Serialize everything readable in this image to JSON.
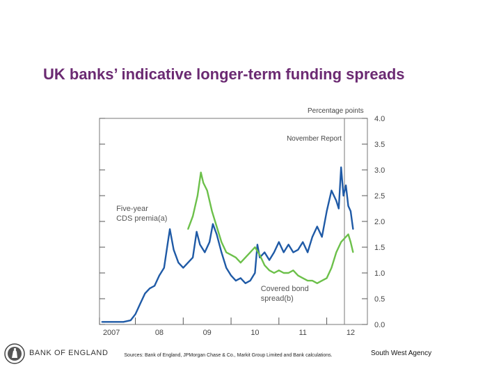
{
  "slide": {
    "title": "UK banks’ indicative longer-term funding spreads",
    "sources": "Sources: Bank of England, JPMorgan Chase & Co., Markit Group Limited and Bank calculations.",
    "agency": "South West Agency",
    "logo_text": "BANK OF ENGLAND"
  },
  "chart_data": {
    "type": "line",
    "title": "",
    "ylabel": "Percentage points",
    "ylim": [
      0,
      4
    ],
    "y_ticks": [
      "4.0",
      "3.5",
      "3.0",
      "2.5",
      "2.0",
      "1.5",
      "1.0",
      "0.5",
      "0.0"
    ],
    "x_range": [
      2006.75,
      2012.35
    ],
    "x_ticks": [
      {
        "label": "2007",
        "x": 2007.0
      },
      {
        "label": "08",
        "x": 2008.0
      },
      {
        "label": "09",
        "x": 2009.0
      },
      {
        "label": "10",
        "x": 2010.0
      },
      {
        "label": "11",
        "x": 2011.0
      },
      {
        "label": "12",
        "x": 2012.0
      }
    ],
    "x_grid_divisions": [
      2006.75,
      2007.5,
      2008.5,
      2009.5,
      2010.5,
      2011.5
    ],
    "grid": false,
    "colors": {
      "cds": "#1f5aa6",
      "covered": "#6cc04a"
    },
    "annotations": [
      {
        "name": "november-report-line",
        "x": 2011.87,
        "label": "November Report"
      }
    ],
    "series": [
      {
        "name": "Five-year CDS premia(a)",
        "color": "#1f5aa6",
        "points": [
          [
            2006.8,
            0.05
          ],
          [
            2007.0,
            0.05
          ],
          [
            2007.1,
            0.05
          ],
          [
            2007.25,
            0.05
          ],
          [
            2007.4,
            0.08
          ],
          [
            2007.5,
            0.2
          ],
          [
            2007.6,
            0.4
          ],
          [
            2007.7,
            0.6
          ],
          [
            2007.8,
            0.7
          ],
          [
            2007.9,
            0.75
          ],
          [
            2008.0,
            0.95
          ],
          [
            2008.1,
            1.1
          ],
          [
            2008.18,
            1.6
          ],
          [
            2008.22,
            1.85
          ],
          [
            2008.3,
            1.45
          ],
          [
            2008.4,
            1.2
          ],
          [
            2008.5,
            1.1
          ],
          [
            2008.6,
            1.2
          ],
          [
            2008.7,
            1.3
          ],
          [
            2008.78,
            1.8
          ],
          [
            2008.85,
            1.55
          ],
          [
            2008.95,
            1.4
          ],
          [
            2009.05,
            1.6
          ],
          [
            2009.12,
            1.95
          ],
          [
            2009.2,
            1.75
          ],
          [
            2009.3,
            1.4
          ],
          [
            2009.4,
            1.1
          ],
          [
            2009.5,
            0.95
          ],
          [
            2009.6,
            0.85
          ],
          [
            2009.7,
            0.9
          ],
          [
            2009.8,
            0.8
          ],
          [
            2009.9,
            0.85
          ],
          [
            2010.0,
            1.0
          ],
          [
            2010.05,
            1.55
          ],
          [
            2010.1,
            1.3
          ],
          [
            2010.2,
            1.4
          ],
          [
            2010.3,
            1.25
          ],
          [
            2010.4,
            1.4
          ],
          [
            2010.5,
            1.6
          ],
          [
            2010.6,
            1.4
          ],
          [
            2010.7,
            1.55
          ],
          [
            2010.8,
            1.4
          ],
          [
            2010.9,
            1.45
          ],
          [
            2011.0,
            1.6
          ],
          [
            2011.1,
            1.4
          ],
          [
            2011.2,
            1.7
          ],
          [
            2011.3,
            1.9
          ],
          [
            2011.4,
            1.7
          ],
          [
            2011.5,
            2.2
          ],
          [
            2011.6,
            2.6
          ],
          [
            2011.7,
            2.4
          ],
          [
            2011.75,
            2.25
          ],
          [
            2011.8,
            3.05
          ],
          [
            2011.85,
            2.5
          ],
          [
            2011.9,
            2.7
          ],
          [
            2011.95,
            2.3
          ],
          [
            2012.0,
            2.2
          ],
          [
            2012.05,
            1.85
          ]
        ]
      },
      {
        "name": "Covered bond spread(b)",
        "color": "#6cc04a",
        "points": [
          [
            2008.6,
            1.85
          ],
          [
            2008.7,
            2.1
          ],
          [
            2008.8,
            2.5
          ],
          [
            2008.87,
            2.95
          ],
          [
            2008.92,
            2.75
          ],
          [
            2009.0,
            2.6
          ],
          [
            2009.1,
            2.2
          ],
          [
            2009.2,
            1.9
          ],
          [
            2009.3,
            1.6
          ],
          [
            2009.4,
            1.4
          ],
          [
            2009.5,
            1.35
          ],
          [
            2009.6,
            1.3
          ],
          [
            2009.7,
            1.2
          ],
          [
            2009.8,
            1.3
          ],
          [
            2009.9,
            1.4
          ],
          [
            2010.0,
            1.5
          ],
          [
            2010.1,
            1.35
          ],
          [
            2010.2,
            1.15
          ],
          [
            2010.3,
            1.05
          ],
          [
            2010.4,
            1.0
          ],
          [
            2010.5,
            1.05
          ],
          [
            2010.6,
            1.0
          ],
          [
            2010.7,
            1.0
          ],
          [
            2010.8,
            1.05
          ],
          [
            2010.9,
            0.95
          ],
          [
            2011.0,
            0.9
          ],
          [
            2011.1,
            0.85
          ],
          [
            2011.2,
            0.85
          ],
          [
            2011.3,
            0.8
          ],
          [
            2011.4,
            0.85
          ],
          [
            2011.5,
            0.9
          ],
          [
            2011.6,
            1.1
          ],
          [
            2011.7,
            1.4
          ],
          [
            2011.8,
            1.6
          ],
          [
            2011.9,
            1.7
          ],
          [
            2011.95,
            1.75
          ],
          [
            2012.0,
            1.6
          ],
          [
            2012.05,
            1.4
          ]
        ]
      }
    ],
    "series_labels": [
      {
        "name": "cds-series-label",
        "lines": [
          "Five-year",
          "CDS premia(a)"
        ]
      },
      {
        "name": "covered-series-label",
        "lines": [
          "Covered bond",
          "spread(b)"
        ]
      }
    ]
  }
}
